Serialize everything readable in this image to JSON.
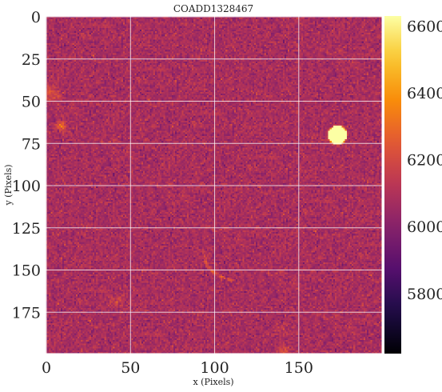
{
  "chart_data": {
    "type": "heatmap",
    "title": "COADD1328467",
    "xlabel": "x (Pixels)",
    "ylabel": "y (Pixels)",
    "x_range": [
      0,
      199
    ],
    "y_range": [
      0,
      199
    ],
    "y_inverted": true,
    "x_ticks": [
      "0",
      "50",
      "100",
      "150"
    ],
    "x_tick_values": [
      0,
      50,
      100,
      150
    ],
    "y_ticks": [
      "0",
      "25",
      "50",
      "75",
      "100",
      "125",
      "150",
      "175"
    ],
    "y_tick_values": [
      0,
      25,
      50,
      75,
      100,
      125,
      150,
      175
    ],
    "grid": true,
    "colormap": "inferno",
    "background_level": 6080,
    "colorbar": {
      "range": [
        5620,
        6630
      ],
      "ticks": [
        "5800",
        "6000",
        "6200",
        "6400",
        "6600"
      ],
      "tick_values": [
        5800,
        6000,
        6200,
        6400,
        6600
      ]
    },
    "sources": [
      {
        "x": 173,
        "y": 70,
        "peak": 6630,
        "radius": 5.5,
        "kind": "bright star"
      },
      {
        "x": 9,
        "y": 65,
        "peak": 6280,
        "radius": 2.2,
        "kind": "faint source"
      },
      {
        "x": 3,
        "y": 45,
        "peak": 6220,
        "radius": 3.0,
        "kind": "faint source"
      },
      {
        "x": 141,
        "y": 198,
        "peak": 6200,
        "radius": 2.5,
        "kind": "faint source"
      },
      {
        "x": 42,
        "y": 168,
        "peak": 6160,
        "radius": 3.0,
        "kind": "faint source"
      },
      {
        "x": 140,
        "y": 185,
        "peak": 6150,
        "radius": 2.5,
        "kind": "faint source"
      }
    ],
    "streak": [
      [
        93,
        139
      ],
      [
        95,
        146
      ],
      [
        99,
        151
      ],
      [
        104,
        154
      ],
      [
        110,
        156
      ]
    ]
  }
}
